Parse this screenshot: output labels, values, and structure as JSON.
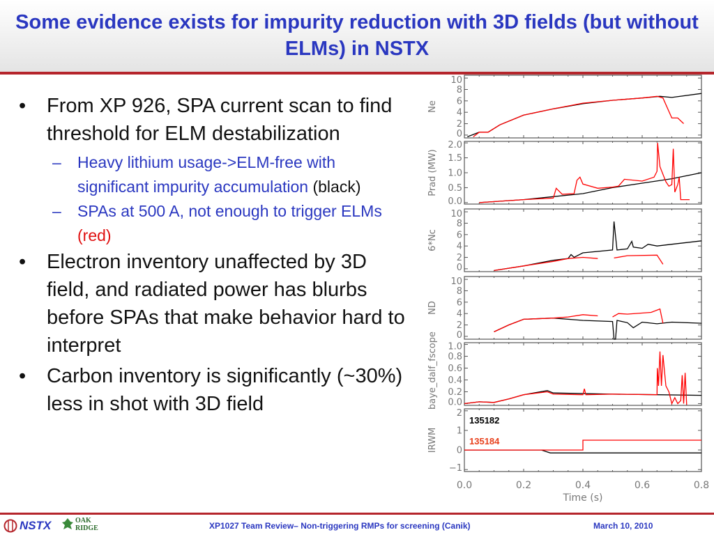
{
  "title": "Some evidence exists for impurity reduction with 3D fields (but without ELMs) in NSTX",
  "bullets": [
    {
      "text": "From XP 926, SPA current scan to find threshold for ELM destabilization",
      "sub": [
        {
          "text": "Heavy lithium usage->ELM-free with significant impurity accumulation",
          "tag": " (black)",
          "tag_color": "black"
        },
        {
          "text": "SPAs at 500 A, not enough to trigger ELMs",
          "tag": " (red)",
          "tag_color": "red"
        }
      ]
    },
    {
      "text": "Electron inventory unaffected by 3D field, and radiated power has blurbs before SPAs that make behavior hard to interpret",
      "sub": []
    },
    {
      "text": "Carbon inventory is significantly (~30%) less in shot with 3D field",
      "sub": []
    }
  ],
  "footer": {
    "logo": "NSTX",
    "partner_logo": "OAK RIDGE National Laboratory",
    "text": "XP1027 Team Review– Non-triggering RMPs for screening (Canik)",
    "date": "March 10, 2010"
  },
  "colors": {
    "title": "#2a37c0",
    "accent": "#b5252b",
    "black_series": "#000000",
    "red_series": "#ff0000"
  },
  "chart_data": {
    "type": "line",
    "xlabel": "Time (s)",
    "xlim": [
      0,
      0.8
    ],
    "xticks": [
      "0.0",
      "0.2",
      "0.4",
      "0.6",
      "0.8"
    ],
    "legend": [
      {
        "name": "135182",
        "color": "#000000"
      },
      {
        "name": "135184",
        "color": "#ff0000"
      }
    ],
    "legend_placement": "bottom panel, top-left",
    "panels": [
      {
        "ylabel": "Ne",
        "ylim": [
          -0.5,
          10.5
        ],
        "yticks": [
          "0",
          "2",
          "4",
          "6",
          "8",
          "10"
        ],
        "black": [
          [
            0.01,
            -0.3
          ],
          [
            0.05,
            0.5
          ],
          [
            0.08,
            0.5
          ],
          [
            0.12,
            1.8
          ],
          [
            0.2,
            3.5
          ],
          [
            0.3,
            4.6
          ],
          [
            0.4,
            5.5
          ],
          [
            0.5,
            6.1
          ],
          [
            0.6,
            6.5
          ],
          [
            0.66,
            6.8
          ],
          [
            0.7,
            6.6
          ],
          [
            0.8,
            7.3
          ]
        ],
        "red": [
          [
            0.03,
            -0.3
          ],
          [
            0.05,
            0.5
          ],
          [
            0.08,
            0.5
          ],
          [
            0.12,
            1.8
          ],
          [
            0.2,
            3.5
          ],
          [
            0.3,
            4.6
          ],
          [
            0.4,
            5.6
          ],
          [
            0.5,
            6.1
          ],
          [
            0.6,
            6.5
          ],
          [
            0.65,
            6.8
          ],
          [
            0.67,
            6.5
          ],
          [
            0.7,
            3.0
          ],
          [
            0.72,
            3.0
          ],
          [
            0.74,
            2.0
          ]
        ]
      },
      {
        "ylabel": "Prad (MW)",
        "ylim": [
          -0.05,
          2.05
        ],
        "yticks": [
          "0.0",
          "0.5",
          "1.0",
          "1.5",
          "2.0"
        ],
        "black": [
          [
            0.05,
            0
          ],
          [
            0.2,
            0.1
          ],
          [
            0.3,
            0.2
          ],
          [
            0.4,
            0.3
          ],
          [
            0.5,
            0.5
          ],
          [
            0.6,
            0.65
          ],
          [
            0.7,
            0.8
          ],
          [
            0.8,
            1.0
          ]
        ],
        "red": [
          [
            0.05,
            0
          ],
          [
            0.2,
            0.1
          ],
          [
            0.3,
            0.15
          ],
          [
            0.31,
            0.48
          ],
          [
            0.33,
            0.28
          ],
          [
            0.37,
            0.3
          ],
          [
            0.38,
            0.75
          ],
          [
            0.39,
            0.85
          ],
          [
            0.4,
            0.62
          ],
          [
            0.45,
            0.48
          ],
          [
            0.5,
            0.52
          ],
          [
            0.52,
            0.55
          ],
          [
            0.54,
            0.78
          ],
          [
            0.6,
            0.72
          ],
          [
            0.64,
            0.85
          ],
          [
            0.65,
            1.05
          ],
          [
            0.652,
            2.0
          ],
          [
            0.66,
            1.2
          ],
          [
            0.68,
            0.7
          ],
          [
            0.69,
            0.55
          ],
          [
            0.7,
            0.6
          ],
          [
            0.705,
            1.8
          ],
          [
            0.71,
            0.35
          ],
          [
            0.72,
            0.6
          ],
          [
            0.725,
            0.85
          ],
          [
            0.73,
            0.1
          ],
          [
            0.76,
            0.1
          ]
        ]
      },
      {
        "ylabel": "6*Nc",
        "ylim": [
          -0.5,
          10.5
        ],
        "yticks": [
          "0",
          "2",
          "4",
          "6",
          "8",
          "10"
        ],
        "black": [
          [
            0.1,
            -0.3
          ],
          [
            0.2,
            0.5
          ],
          [
            0.3,
            1.5
          ],
          [
            0.35,
            1.8
          ],
          [
            0.36,
            2.5
          ],
          [
            0.37,
            2.0
          ],
          [
            0.4,
            2.8
          ],
          [
            0.5,
            3.3
          ],
          [
            0.505,
            8.3
          ],
          [
            0.515,
            3.3
          ],
          [
            0.55,
            3.5
          ],
          [
            0.565,
            4.8
          ],
          [
            0.57,
            3.8
          ],
          [
            0.6,
            3.6
          ],
          [
            0.62,
            4.3
          ],
          [
            0.65,
            4.0
          ],
          [
            0.7,
            4.3
          ],
          [
            0.8,
            4.9
          ]
        ],
        "red": [
          [
            0.1,
            -0.3
          ],
          [
            0.2,
            0.5
          ],
          [
            0.3,
            1.3
          ],
          [
            0.35,
            1.8
          ],
          [
            0.4,
            2.0
          ],
          [
            0.45,
            1.8
          ],
          null,
          [
            0.505,
            1.9
          ],
          [
            0.55,
            2.3
          ],
          [
            0.65,
            2.4
          ],
          [
            0.67,
            0.8
          ]
        ]
      },
      {
        "ylabel": "ND",
        "ylim": [
          -0.5,
          10.5
        ],
        "yticks": [
          "0",
          "2",
          "4",
          "6",
          "8",
          "10"
        ],
        "black": [
          [
            0.1,
            0.8
          ],
          [
            0.15,
            2.0
          ],
          [
            0.2,
            3.0
          ],
          [
            0.3,
            3.2
          ],
          [
            0.4,
            2.8
          ],
          [
            0.5,
            2.6
          ],
          [
            0.505,
            -0.5
          ],
          [
            0.51,
            -0.5
          ],
          [
            0.515,
            2.8
          ],
          [
            0.55,
            2.4
          ],
          [
            0.57,
            1.5
          ],
          [
            0.6,
            2.5
          ],
          [
            0.65,
            2.2
          ],
          [
            0.7,
            2.5
          ],
          [
            0.8,
            2.3
          ]
        ],
        "red": [
          [
            0.1,
            0.8
          ],
          [
            0.15,
            2.0
          ],
          [
            0.2,
            3.0
          ],
          [
            0.3,
            3.2
          ],
          [
            0.35,
            3.4
          ],
          [
            0.4,
            3.8
          ],
          [
            0.45,
            3.6
          ],
          null,
          [
            0.5,
            3.4
          ],
          [
            0.52,
            4.0
          ],
          [
            0.55,
            3.9
          ],
          [
            0.63,
            4.2
          ],
          [
            0.66,
            4.8
          ],
          [
            0.67,
            2.3
          ]
        ]
      },
      {
        "ylabel": "baye_dalf_fscope",
        "ylim": [
          -0.03,
          1.03
        ],
        "yticks": [
          "0.0",
          "0.2",
          "0.4",
          "0.6",
          "0.8",
          "1.0"
        ],
        "black": [
          [
            0,
            0
          ],
          [
            0.05,
            0.03
          ],
          [
            0.1,
            0.02
          ],
          [
            0.15,
            0.08
          ],
          [
            0.2,
            0.15
          ],
          [
            0.28,
            0.22
          ],
          [
            0.3,
            0.18
          ],
          [
            0.5,
            0.16
          ],
          [
            0.65,
            0.15
          ],
          [
            0.8,
            0.14
          ]
        ],
        "red": [
          [
            0,
            0
          ],
          [
            0.05,
            0.03
          ],
          [
            0.1,
            0.02
          ],
          [
            0.15,
            0.08
          ],
          [
            0.2,
            0.15
          ],
          [
            0.28,
            0.2
          ],
          [
            0.3,
            0.16
          ],
          [
            0.4,
            0.15
          ],
          [
            0.405,
            0.25
          ],
          [
            0.41,
            0.15
          ],
          [
            0.5,
            0.16
          ],
          [
            0.65,
            0.15
          ],
          [
            0.651,
            0.6
          ],
          [
            0.655,
            0.3
          ],
          [
            0.66,
            0.88
          ],
          [
            0.665,
            0.3
          ],
          [
            0.67,
            0.82
          ],
          [
            0.68,
            0.3
          ],
          [
            0.69,
            0.2
          ],
          [
            0.7,
            0.0
          ],
          [
            0.71,
            0.1
          ],
          [
            0.72,
            0.0
          ],
          [
            0.73,
            0.05
          ],
          [
            0.735,
            0.48
          ],
          [
            0.74,
            0.0
          ],
          [
            0.745,
            0.52
          ],
          [
            0.75,
            -0.02
          ]
        ]
      },
      {
        "ylabel": "IRWM",
        "ylim": [
          -1.1,
          2.1
        ],
        "yticks": [
          "−1",
          "0",
          "1",
          "2"
        ],
        "black": [
          [
            0,
            0
          ],
          [
            0.26,
            0
          ],
          [
            0.29,
            -0.15
          ],
          [
            0.8,
            -0.15
          ]
        ],
        "red": [
          [
            0,
            0
          ],
          [
            0.4,
            0
          ],
          [
            0.4,
            0.5
          ],
          [
            0.8,
            0.5
          ]
        ]
      }
    ]
  }
}
